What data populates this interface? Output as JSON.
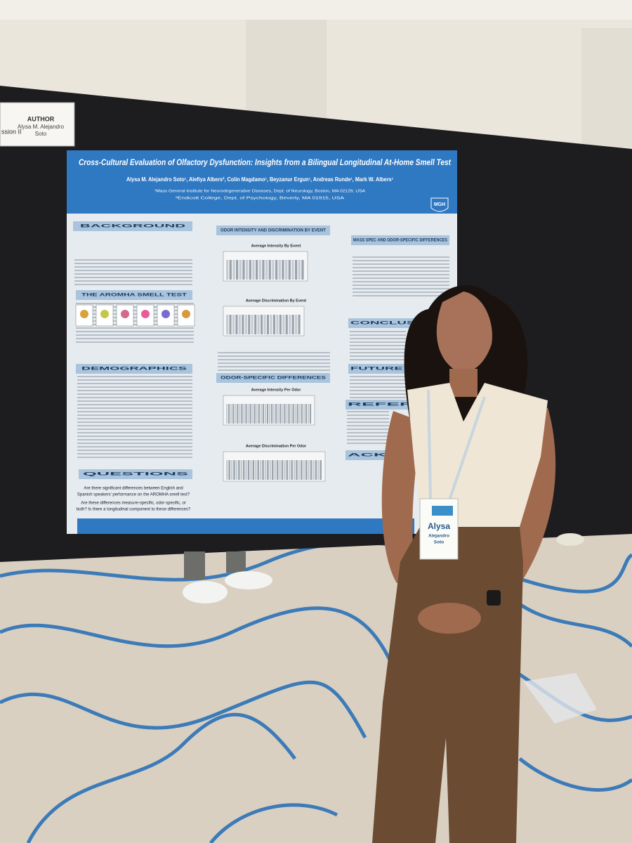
{
  "author_card": {
    "session": "ssion II",
    "heading": "AUTHOR",
    "name_line_1": "Alysa M. Alejandro",
    "name_line_2": "Soto"
  },
  "poster": {
    "title": "Cross-Cultural Evaluation of Olfactory Dysfunction: Insights from a Bilingual Longitudinal At-Home Smell Test",
    "authors": "Alysa M. Alejandro Soto¹, Alefiya Albers², Colin Magdamo¹, Beyzanur Ergun¹, Andreas Runde¹, Mark W. Albers¹",
    "affiliation_1": "¹Mass General Institute for Neurodegenerative Diseases, Dept. of Neurology, Boston, MA 02129, USA",
    "affiliation_2": "²Endicott College, Dept. of Psychology, Beverly, MA 01915, USA",
    "logo": "MGH",
    "headings": [
      "BACKGROUND",
      "THE AROMHA SMELL TEST",
      "DEMOGRAPHICS",
      "QUESTIONS",
      "ODOR INTENSITY AND DISCRIMINATION BY EVENT",
      "ODOR-SPECIFIC DIFFERENCES",
      "MASS SPEC AND ODOR-SPECIFIC DIFFERENCES",
      "CONCLUSIONS",
      "FUTURE WORK",
      "REFER",
      "ACKNO"
    ],
    "chart_titles": [
      "Average Intensity By Event",
      "Average Discrimination By Event",
      "Average Intensity Per Odor",
      "Average Discrimination Per Odor"
    ],
    "questions": [
      "Are there significant differences between English and",
      "Spanish speakers' performance on the AROMHA smell test?",
      "Are these differences measure-specific, odor-specific, or",
      "both? Is there a longitudinal component to these differences?"
    ]
  },
  "badge": {
    "first_name": "Alysa",
    "last_name_1": "Alejandro",
    "last_name_2": "Soto"
  }
}
